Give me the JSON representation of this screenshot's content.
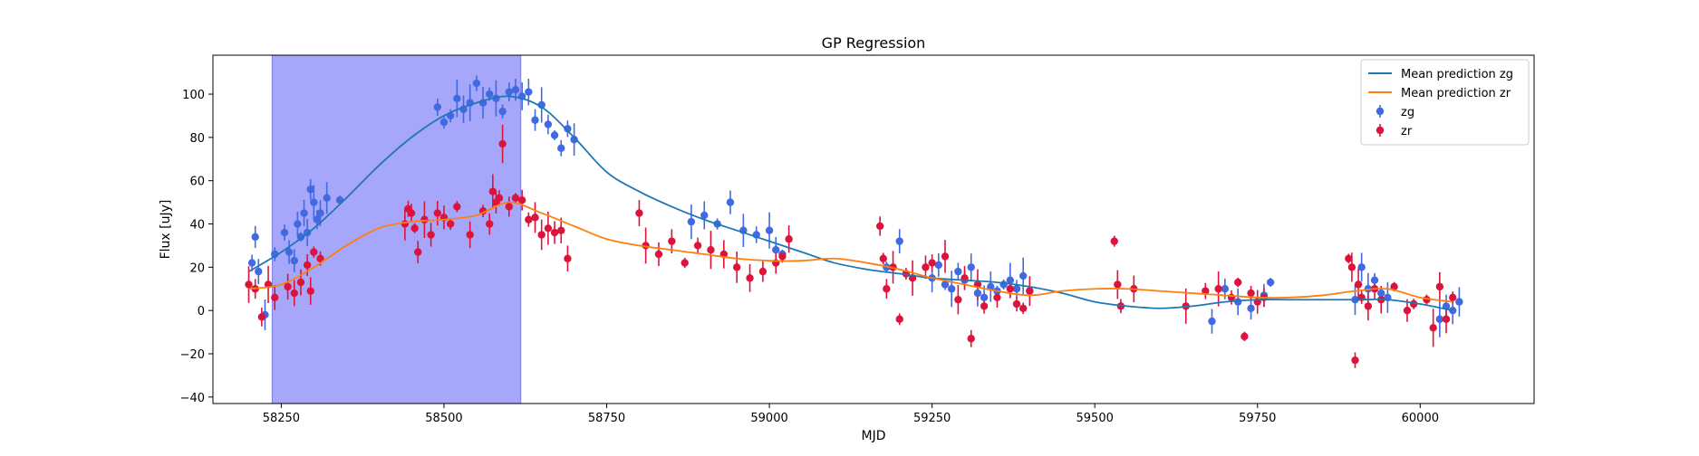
{
  "chart_data": {
    "type": "scatter",
    "title": "GP Regression",
    "xlabel": "MJD",
    "ylabel": "Flux [uJy]",
    "xlim": [
      58145,
      60175
    ],
    "ylim": [
      -43,
      118
    ],
    "xticks": [
      58250,
      58500,
      58750,
      59000,
      59250,
      59500,
      59750,
      60000
    ],
    "yticks": [
      -40,
      -20,
      0,
      20,
      40,
      60,
      80,
      100
    ],
    "legend_position": "top-right",
    "highlight_span": {
      "x": [
        58236,
        58618
      ],
      "color": "#a6a6fb"
    },
    "colors": {
      "line_zg": "#1f77b4",
      "line_zr": "#ff7f0e",
      "points_zg": "#4169e1",
      "points_zr": "#dc143c"
    },
    "lines": [
      {
        "name": "Mean prediction zg",
        "x": [
          58200,
          58250,
          58300,
          58350,
          58400,
          58450,
          58500,
          58550,
          58600,
          58650,
          58700,
          58750,
          58800,
          58850,
          58900,
          58950,
          59000,
          59050,
          59100,
          59150,
          59200,
          59250,
          59300,
          59350,
          59400,
          59450,
          59500,
          59550,
          59600,
          59650,
          59700,
          59750,
          59800,
          59850,
          59900,
          59950,
          60000,
          60050
        ],
        "y": [
          18,
          27,
          38,
          52,
          67,
          80,
          90,
          96,
          99,
          94,
          80,
          64,
          55,
          48,
          42,
          37,
          32,
          27,
          22,
          19,
          17,
          15,
          14,
          13,
          11,
          8,
          4,
          2,
          1,
          2,
          4,
          5,
          5,
          5,
          5,
          5,
          3,
          0
        ]
      },
      {
        "name": "Mean prediction zr",
        "x": [
          58200,
          58250,
          58300,
          58350,
          58400,
          58450,
          58500,
          58550,
          58600,
          58650,
          58700,
          58750,
          58800,
          58850,
          58900,
          58950,
          59000,
          59050,
          59100,
          59150,
          59200,
          59250,
          59300,
          59350,
          59400,
          59450,
          59500,
          59550,
          59600,
          59650,
          59700,
          59750,
          59800,
          59850,
          59900,
          59950,
          60000,
          60050
        ],
        "y": [
          10,
          12,
          20,
          30,
          38,
          41,
          42,
          44,
          50,
          45,
          39,
          33,
          30,
          28,
          26,
          24,
          23,
          23,
          24,
          22,
          19,
          15,
          12,
          9,
          7,
          9,
          10,
          10,
          9,
          8,
          7,
          6,
          6,
          7,
          9,
          10,
          6,
          4
        ]
      }
    ],
    "points": [
      {
        "name": "zg",
        "x": [
          58205,
          58210,
          58215,
          58225,
          58240,
          58255,
          58262,
          58270,
          58275,
          58280,
          58285,
          58290,
          58295,
          58300,
          58305,
          58310,
          58320,
          58340,
          58490,
          58500,
          58510,
          58520,
          58530,
          58540,
          58550,
          58560,
          58570,
          58580,
          58590,
          58600,
          58610,
          58620,
          58630,
          58640,
          58650,
          58660,
          58670,
          58680,
          58690,
          58700,
          58880,
          58900,
          58920,
          58940,
          58960,
          58980,
          59000,
          59010,
          59020,
          59180,
          59200,
          59250,
          59260,
          59270,
          59280,
          59290,
          59300,
          59310,
          59320,
          59330,
          59340,
          59350,
          59360,
          59370,
          59380,
          59390,
          59400,
          59680,
          59700,
          59720,
          59740,
          59760,
          59770,
          59900,
          59910,
          59920,
          59930,
          59940,
          59950,
          60030,
          60040,
          60050,
          60060
        ],
        "y": [
          22,
          34,
          18,
          -2,
          26,
          36,
          27,
          23,
          40,
          34,
          45,
          36,
          56,
          50,
          42,
          45,
          52,
          51,
          94,
          87,
          90,
          98,
          93,
          96,
          105,
          96,
          100,
          98,
          92,
          101,
          102,
          99,
          101,
          88,
          95,
          86,
          81,
          75,
          84,
          79,
          41,
          44,
          40,
          50,
          37,
          35,
          37,
          28,
          26,
          20,
          32,
          15,
          21,
          12,
          10,
          18,
          14,
          20,
          8,
          6,
          11,
          9,
          12,
          14,
          10,
          16,
          9,
          -5,
          10,
          4,
          1,
          7,
          13,
          5,
          20,
          10,
          14,
          8,
          6,
          -4,
          2,
          0,
          4
        ]
      },
      {
        "name": "zr",
        "x": [
          58200,
          58210,
          58220,
          58230,
          58240,
          58260,
          58270,
          58280,
          58290,
          58295,
          58300,
          58310,
          58440,
          58445,
          58450,
          58455,
          58460,
          58470,
          58480,
          58490,
          58500,
          58510,
          58520,
          58540,
          58560,
          58570,
          58575,
          58580,
          58585,
          58590,
          58600,
          58610,
          58620,
          58630,
          58640,
          58650,
          58660,
          58670,
          58680,
          58690,
          58800,
          58810,
          58830,
          58850,
          58870,
          58890,
          58910,
          58930,
          58950,
          58970,
          58990,
          59010,
          59020,
          59030,
          59170,
          59175,
          59180,
          59190,
          59200,
          59210,
          59220,
          59240,
          59250,
          59270,
          59290,
          59300,
          59310,
          59320,
          59330,
          59350,
          59370,
          59380,
          59390,
          59400,
          59530,
          59535,
          59540,
          59560,
          59640,
          59670,
          59690,
          59710,
          59720,
          59730,
          59740,
          59750,
          59760,
          59890,
          59895,
          59900,
          59905,
          59910,
          59920,
          59930,
          59940,
          59960,
          59980,
          59990,
          60010,
          60020,
          60030,
          60040,
          60050
        ],
        "y": [
          12,
          10,
          -3,
          12,
          6,
          11,
          8,
          13,
          21,
          9,
          27,
          24,
          40,
          47,
          45,
          38,
          27,
          42,
          35,
          45,
          43,
          40,
          48,
          35,
          46,
          40,
          55,
          50,
          52,
          77,
          48,
          52,
          51,
          42,
          43,
          35,
          38,
          36,
          37,
          24,
          45,
          30,
          26,
          32,
          22,
          30,
          28,
          26,
          20,
          15,
          18,
          22,
          25,
          33,
          39,
          24,
          10,
          20,
          -4,
          17,
          15,
          20,
          22,
          25,
          5,
          15,
          -13,
          12,
          2,
          6,
          10,
          3,
          1,
          9,
          32,
          12,
          2,
          10,
          2,
          9,
          10,
          6,
          13,
          -12,
          8,
          4,
          6,
          24,
          20,
          -23,
          12,
          6,
          2,
          10,
          5,
          11,
          0,
          3,
          5,
          -8,
          11,
          -4,
          6
        ]
      }
    ],
    "legend": [
      {
        "label": "Mean prediction zg",
        "kind": "line",
        "series": "line_zg"
      },
      {
        "label": "Mean prediction zr",
        "kind": "line",
        "series": "line_zr"
      },
      {
        "label": "zg",
        "kind": "marker",
        "series": "points_zg"
      },
      {
        "label": "zr",
        "kind": "marker",
        "series": "points_zr"
      }
    ]
  }
}
